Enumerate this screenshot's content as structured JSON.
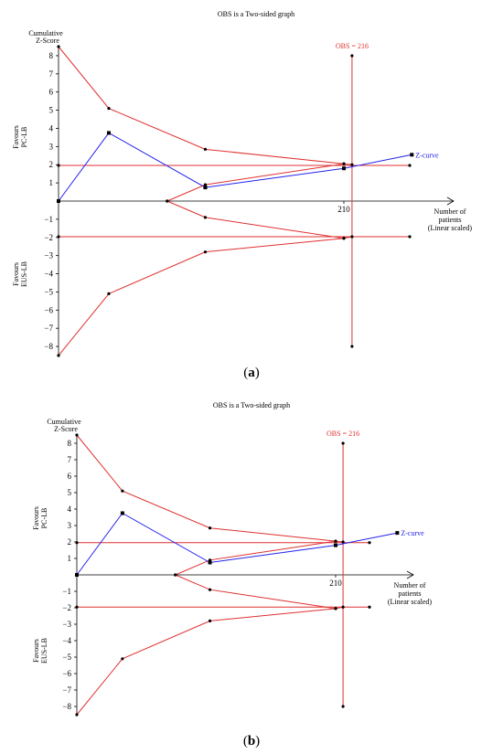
{
  "colors": {
    "boundary": "#e03030",
    "zcurve": "#2222ee",
    "axis": "#000000",
    "marker": "#000000"
  },
  "chart_data": [
    {
      "type": "line",
      "panel_label": "a",
      "title": "OBS is a Two-sided graph",
      "ylabel": [
        "Cumulative",
        "Z-Score"
      ],
      "favours_top": [
        "Favours",
        "PC-LB"
      ],
      "favours_bottom": [
        "Favours",
        "EUS-LB"
      ],
      "xlabel": [
        "Number of",
        "patients",
        "(Linear scaled)"
      ],
      "obs_label": "OBS = 216",
      "obs_x": 216,
      "xlim": [
        0,
        300
      ],
      "ylim": [
        -8.5,
        8.5
      ],
      "x_ticks": [
        210
      ],
      "y_ticks": [
        8,
        7,
        6,
        5,
        4,
        3,
        2,
        1,
        -1,
        -2,
        -3,
        -4,
        -5,
        -6,
        -7,
        -8
      ],
      "series": [
        {
          "name": "Z-curve",
          "values": [
            [
              0,
              0
            ],
            [
              37,
              3.75
            ],
            [
              108,
              0.75
            ],
            [
              210,
              1.8
            ],
            [
              260,
              2.55
            ]
          ]
        }
      ],
      "upper_boundary": [
        [
          0,
          8.5
        ],
        [
          37,
          5.1
        ],
        [
          108,
          2.85
        ],
        [
          210,
          2.05
        ],
        [
          216,
          2.0
        ]
      ],
      "lower_boundary": [
        [
          0,
          -8.5
        ],
        [
          37,
          -5.1
        ],
        [
          108,
          -2.8
        ],
        [
          210,
          -2.05
        ],
        [
          216,
          -1.96
        ]
      ],
      "inner_upper": [
        [
          80,
          0
        ],
        [
          108,
          0.9
        ],
        [
          210,
          2.05
        ]
      ],
      "inner_lower": [
        [
          80,
          0
        ],
        [
          108,
          -0.9
        ],
        [
          210,
          -2.05
        ]
      ],
      "conventional_boundary": 1.96
    },
    {
      "type": "line",
      "panel_label": "b",
      "title": "OBS is a Two-sided graph",
      "ylabel": [
        "Cumulative",
        "Z-Score"
      ],
      "favours_top": [
        "Favours",
        "PC-LB"
      ],
      "favours_bottom": [
        "Favours",
        "EUS-LB"
      ],
      "xlabel": [
        "Number of",
        "patients",
        "(Linear scaled)"
      ],
      "obs_label": "OBS = 216",
      "obs_x": 216,
      "xlim": [
        0,
        300
      ],
      "ylim": [
        -8.5,
        8.5
      ],
      "x_ticks": [
        210
      ],
      "y_ticks": [
        8,
        7,
        6,
        5,
        4,
        3,
        2,
        1,
        -1,
        -2,
        -3,
        -4,
        -5,
        -6,
        -7,
        -8
      ],
      "series": [
        {
          "name": "Z-curve",
          "values": [
            [
              0,
              0
            ],
            [
              37,
              3.75
            ],
            [
              108,
              0.75
            ],
            [
              210,
              1.8
            ],
            [
              260,
              2.55
            ]
          ]
        }
      ],
      "upper_boundary": [
        [
          0,
          8.5
        ],
        [
          37,
          5.1
        ],
        [
          108,
          2.85
        ],
        [
          210,
          2.05
        ],
        [
          216,
          2.0
        ]
      ],
      "lower_boundary": [
        [
          0,
          -8.5
        ],
        [
          37,
          -5.1
        ],
        [
          108,
          -2.8
        ],
        [
          210,
          -2.05
        ],
        [
          216,
          -1.96
        ]
      ],
      "inner_upper": [
        [
          80,
          0
        ],
        [
          108,
          0.9
        ],
        [
          210,
          2.05
        ]
      ],
      "inner_lower": [
        [
          80,
          0
        ],
        [
          108,
          -0.9
        ],
        [
          210,
          -2.05
        ]
      ],
      "conventional_boundary": 1.96
    }
  ]
}
